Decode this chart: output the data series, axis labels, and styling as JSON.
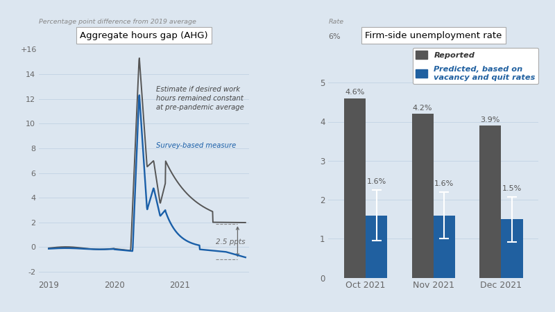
{
  "bg_color": "#dce6f0",
  "left_title": "Aggregate hours gap (AHG)",
  "left_ylabel_italic": "Percentage point difference from 2019 average",
  "left_ylabel_plus16": "+16",
  "left_xticks_labels": [
    "2019",
    "2020",
    "2021"
  ],
  "left_annotation_black": "Estimate if desired work\nhours remained constant\nat pre-pandemic average",
  "left_annotation_blue": "Survey-based measure",
  "left_gap_label": "2.5 ppts",
  "right_title": "Firm-side unemployment rate",
  "right_ylabel_line1": "Rate",
  "right_ylabel_line2": "6%",
  "right_yticks": [
    0,
    1,
    2,
    3,
    4,
    5
  ],
  "right_xtick_labels": [
    "Oct 2021",
    "Nov 2021",
    "Dec 2021"
  ],
  "reported_values": [
    4.6,
    4.2,
    3.9
  ],
  "predicted_values": [
    1.6,
    1.6,
    1.5
  ],
  "predicted_errors": [
    0.65,
    0.6,
    0.58
  ],
  "reported_labels": [
    "4.6%",
    "4.2%",
    "3.9%"
  ],
  "predicted_labels": [
    "1.6%",
    "1.6%",
    "1.5%"
  ],
  "bar_reported_color": "#555555",
  "bar_predicted_color": "#2060a0",
  "legend_reported": "Reported",
  "legend_predicted": "Predicted, based on\nvacancy and quit rates",
  "line_black_color": "#555555",
  "line_blue_color": "#1a5fa8",
  "grid_color": "#c5d5e5"
}
